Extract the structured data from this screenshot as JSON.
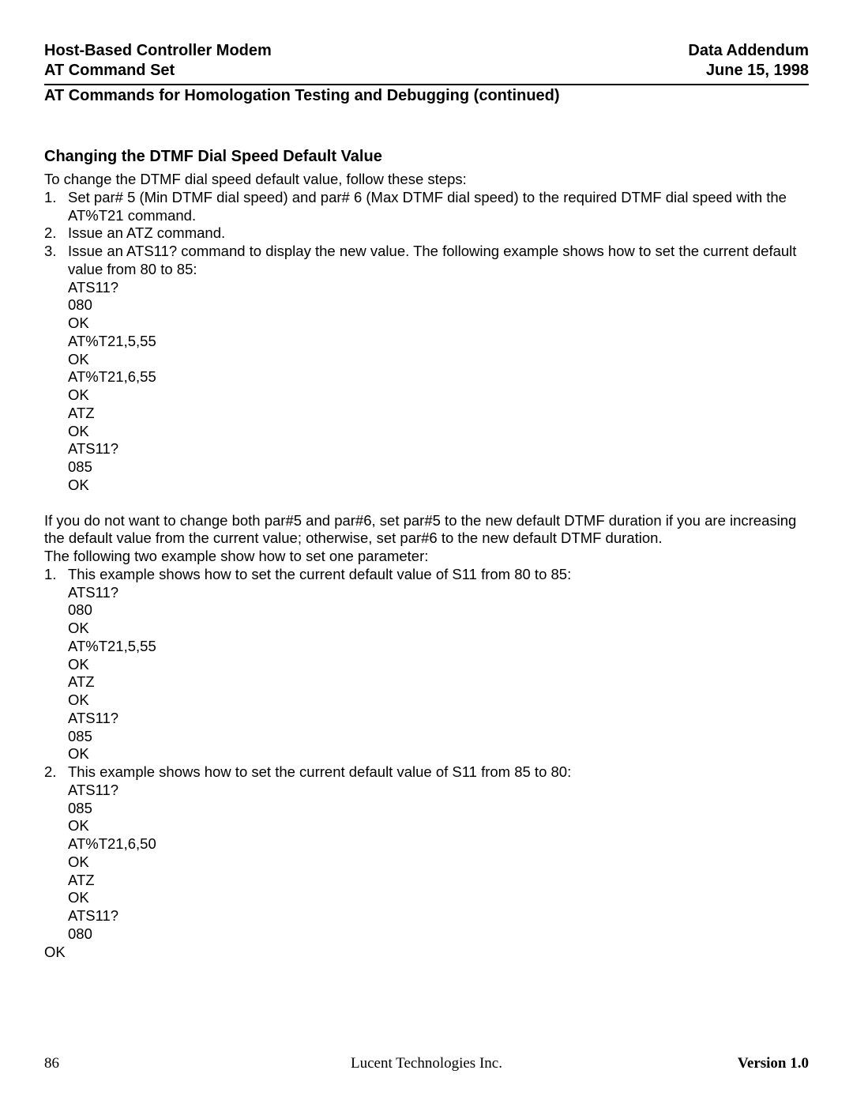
{
  "header": {
    "left1": "Host-Based Controller Modem",
    "right1": "Data Addendum",
    "left2": "AT Command Set",
    "right2": "June 15, 1998"
  },
  "section_title": "AT Commands for Homologation Testing and Debugging (continued)",
  "subheading": "Changing the DTMF Dial Speed Default Value",
  "intro": "To change the DTMF dial speed default value, follow these steps:",
  "steps1": {
    "n1": "1.",
    "t1": "Set par# 5 (Min DTMF dial speed) and par# 6 (Max DTMF dial speed) to the required DTMF dial speed with the AT%T21 command.",
    "n2": "2.",
    "t2": "Issue an ATZ command.",
    "n3": "3.",
    "t3": "Issue an ATS11? command to display the new value.  The following example shows how to set the current default value from 80 to 85:"
  },
  "block1": {
    "l0": "ATS11?",
    "l1": "080",
    "l2": "OK",
    "l3": "AT%T21,5,55",
    "l4": "OK",
    "l5": "AT%T21,6,55",
    "l6": "OK",
    "l7": "ATZ",
    "l8": "OK",
    "l9": "ATS11?",
    "l10": "085",
    "l11": "OK"
  },
  "para2a": "If you do not want to change both par#5 and par#6, set par#5 to the new default DTMF duration if you are increasing the default value from the current value; otherwise, set par#6 to the new default DTMF duration.",
  "para2b": "The following two example show how to set one parameter:",
  "steps2": {
    "n1": "1.",
    "t1": "This example shows how to set the current default value of S11 from 80 to 85:"
  },
  "block2": {
    "l0": "ATS11?",
    "l1": "080",
    "l2": "OK",
    "l3": "AT%T21,5,55",
    "l4": "OK",
    "l5": "ATZ",
    "l6": "OK",
    "l7": "ATS11?",
    "l8": "085",
    "l9": "OK"
  },
  "steps3": {
    "n2": "2.",
    "t2": "This example shows how to set the current default value of S11 from 85 to 80:"
  },
  "block3": {
    "l0": "ATS11?",
    "l1": "085",
    "l2": "OK",
    "l3": "AT%T21,6,50",
    "l4": "OK",
    "l5": "ATZ",
    "l6": "OK",
    "l7": "ATS11?",
    "l8": "080"
  },
  "trailing_ok": "OK",
  "footer": {
    "page": "86",
    "company": "Lucent Technologies Inc.",
    "version": "Version 1.0"
  }
}
